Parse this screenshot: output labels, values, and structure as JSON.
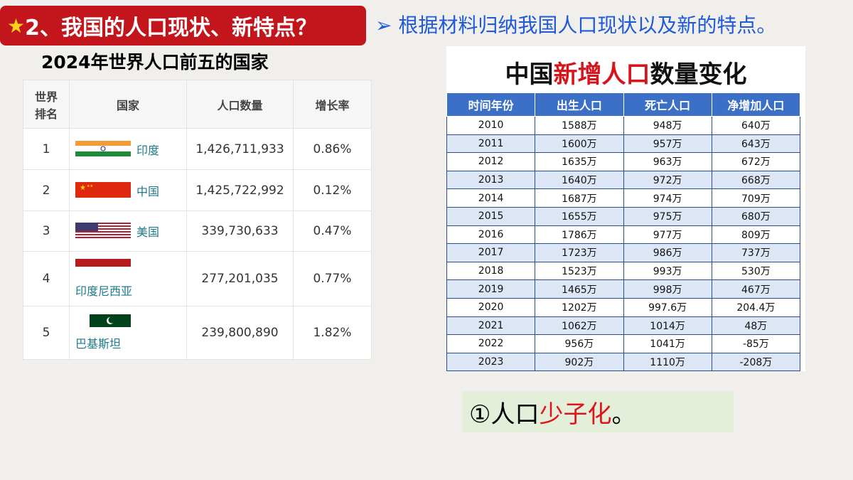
{
  "header": {
    "star": "★",
    "title": "2、我国的人口现状、新特点？",
    "subtitle": "根据材料归纳我国人口现状以及新的特点。"
  },
  "left_table": {
    "title": "2024年世界人口前五的国家",
    "columns": [
      "世界排名",
      "国家",
      "人口数量",
      "增长率"
    ],
    "rows": [
      [
        "1",
        "印度",
        "1,426,711,933",
        "0.86%"
      ],
      [
        "2",
        "中国",
        "1,425,722,992",
        "0.12%"
      ],
      [
        "3",
        "美国",
        "339,730,633",
        "0.47%"
      ],
      [
        "4",
        "印度尼西亚",
        "277,201,035",
        "0.77%"
      ],
      [
        "5",
        "巴基斯坦",
        "239,800,890",
        "1.82%"
      ]
    ]
  },
  "right_table": {
    "title": [
      "中国",
      "新增人口",
      "数量变化"
    ],
    "columns": [
      "时间年份",
      "出生人口",
      "死亡人口",
      "净增加人口"
    ],
    "rows": [
      [
        "2010",
        "1588万",
        "948万",
        "640万"
      ],
      [
        "2011",
        "1600万",
        "957万",
        "643万"
      ],
      [
        "2012",
        "1635万",
        "963万",
        "672万"
      ],
      [
        "2013",
        "1640万",
        "972万",
        "668万"
      ],
      [
        "2014",
        "1687万",
        "974万",
        "709万"
      ],
      [
        "2015",
        "1655万",
        "975万",
        "680万"
      ],
      [
        "2016",
        "1786万",
        "977万",
        "809万"
      ],
      [
        "2017",
        "1723万",
        "986万",
        "737万"
      ],
      [
        "2018",
        "1523万",
        "993万",
        "530万"
      ],
      [
        "2019",
        "1465万",
        "998万",
        "467万"
      ],
      [
        "2020",
        "1202万",
        "997.6万",
        "204.4万"
      ],
      [
        "2021",
        "1062万",
        "1014万",
        "48万"
      ],
      [
        "2022",
        "956万",
        "1041万",
        "-85万"
      ],
      [
        "2023",
        "902万",
        "1110万",
        "-208万"
      ]
    ]
  },
  "conclusion": [
    "①人口",
    "少子化",
    "。"
  ]
}
